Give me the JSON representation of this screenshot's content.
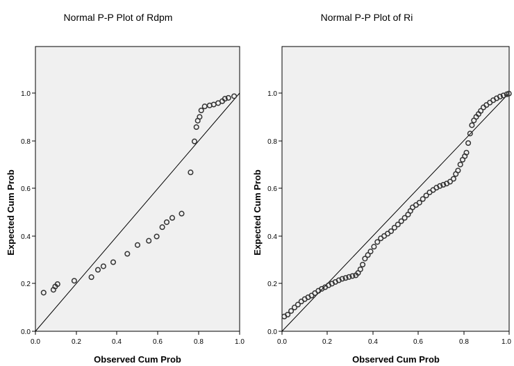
{
  "chart_data": [
    {
      "type": "scatter",
      "title": "Normal P-P Plot of Rdpm",
      "xlabel": "Observed Cum Prob",
      "ylabel": "Expected Cum Prob",
      "xlim": [
        0.0,
        1.0
      ],
      "ylim": [
        0.0,
        1.0
      ],
      "xticks": [
        "0.0",
        "0.2",
        "0.4",
        "0.6",
        "0.8",
        "1.0"
      ],
      "yticks": [
        "0.0",
        "0.2",
        "0.4",
        "0.6",
        "0.8",
        "1.0"
      ],
      "grid": false,
      "reference_line": [
        [
          0.0,
          0.0
        ],
        [
          1.0,
          1.0
        ]
      ],
      "marker_color": "#333333",
      "points": [
        [
          0.04,
          0.162
        ],
        [
          0.088,
          0.174
        ],
        [
          0.097,
          0.188
        ],
        [
          0.108,
          0.198
        ],
        [
          0.19,
          0.212
        ],
        [
          0.274,
          0.227
        ],
        [
          0.306,
          0.258
        ],
        [
          0.333,
          0.273
        ],
        [
          0.381,
          0.29
        ],
        [
          0.45,
          0.325
        ],
        [
          0.5,
          0.362
        ],
        [
          0.555,
          0.38
        ],
        [
          0.594,
          0.398
        ],
        [
          0.621,
          0.437
        ],
        [
          0.643,
          0.458
        ],
        [
          0.67,
          0.476
        ],
        [
          0.716,
          0.494
        ],
        [
          0.76,
          0.667
        ],
        [
          0.779,
          0.797
        ],
        [
          0.788,
          0.857
        ],
        [
          0.795,
          0.884
        ],
        [
          0.804,
          0.9
        ],
        [
          0.812,
          0.927
        ],
        [
          0.829,
          0.944
        ],
        [
          0.853,
          0.948
        ],
        [
          0.873,
          0.952
        ],
        [
          0.895,
          0.958
        ],
        [
          0.915,
          0.966
        ],
        [
          0.928,
          0.976
        ],
        [
          0.945,
          0.98
        ],
        [
          0.973,
          0.987
        ]
      ]
    },
    {
      "type": "scatter",
      "title": "Normal P-P Plot of Ri",
      "xlabel": "Observed Cum Prob",
      "ylabel": "Expected Cum Prob",
      "xlim": [
        0.0,
        1.0
      ],
      "ylim": [
        0.0,
        1.0
      ],
      "xticks": [
        "0.0",
        "0.2",
        "0.4",
        "0.6",
        "0.8",
        "1.0"
      ],
      "yticks": [
        "0.0",
        "0.2",
        "0.4",
        "0.6",
        "0.8",
        "1.0"
      ],
      "grid": false,
      "reference_line": [
        [
          0.0,
          0.0
        ],
        [
          1.0,
          1.0
        ]
      ],
      "marker_color": "#333333",
      "points": [
        [
          0.01,
          0.062
        ],
        [
          0.025,
          0.07
        ],
        [
          0.04,
          0.085
        ],
        [
          0.055,
          0.1
        ],
        [
          0.07,
          0.112
        ],
        [
          0.085,
          0.125
        ],
        [
          0.1,
          0.135
        ],
        [
          0.115,
          0.143
        ],
        [
          0.13,
          0.15
        ],
        [
          0.145,
          0.16
        ],
        [
          0.16,
          0.17
        ],
        [
          0.175,
          0.178
        ],
        [
          0.19,
          0.185
        ],
        [
          0.205,
          0.193
        ],
        [
          0.22,
          0.2
        ],
        [
          0.235,
          0.207
        ],
        [
          0.25,
          0.214
        ],
        [
          0.265,
          0.22
        ],
        [
          0.28,
          0.224
        ],
        [
          0.295,
          0.228
        ],
        [
          0.31,
          0.232
        ],
        [
          0.325,
          0.235
        ],
        [
          0.335,
          0.245
        ],
        [
          0.345,
          0.26
        ],
        [
          0.355,
          0.28
        ],
        [
          0.365,
          0.305
        ],
        [
          0.378,
          0.32
        ],
        [
          0.39,
          0.335
        ],
        [
          0.405,
          0.355
        ],
        [
          0.42,
          0.375
        ],
        [
          0.435,
          0.39
        ],
        [
          0.45,
          0.4
        ],
        [
          0.465,
          0.41
        ],
        [
          0.48,
          0.42
        ],
        [
          0.495,
          0.435
        ],
        [
          0.51,
          0.448
        ],
        [
          0.525,
          0.462
        ],
        [
          0.54,
          0.476
        ],
        [
          0.555,
          0.49
        ],
        [
          0.565,
          0.505
        ],
        [
          0.575,
          0.52
        ],
        [
          0.59,
          0.53
        ],
        [
          0.605,
          0.54
        ],
        [
          0.62,
          0.555
        ],
        [
          0.635,
          0.57
        ],
        [
          0.65,
          0.583
        ],
        [
          0.665,
          0.593
        ],
        [
          0.68,
          0.603
        ],
        [
          0.695,
          0.61
        ],
        [
          0.71,
          0.615
        ],
        [
          0.725,
          0.62
        ],
        [
          0.74,
          0.628
        ],
        [
          0.755,
          0.64
        ],
        [
          0.765,
          0.66
        ],
        [
          0.775,
          0.675
        ],
        [
          0.785,
          0.7
        ],
        [
          0.795,
          0.72
        ],
        [
          0.805,
          0.735
        ],
        [
          0.812,
          0.75
        ],
        [
          0.82,
          0.79
        ],
        [
          0.828,
          0.83
        ],
        [
          0.836,
          0.865
        ],
        [
          0.845,
          0.885
        ],
        [
          0.855,
          0.9
        ],
        [
          0.865,
          0.912
        ],
        [
          0.875,
          0.925
        ],
        [
          0.887,
          0.94
        ],
        [
          0.9,
          0.95
        ],
        [
          0.915,
          0.96
        ],
        [
          0.93,
          0.97
        ],
        [
          0.945,
          0.978
        ],
        [
          0.96,
          0.985
        ],
        [
          0.975,
          0.99
        ],
        [
          0.99,
          0.995
        ],
        [
          0.999,
          0.998
        ]
      ]
    }
  ]
}
